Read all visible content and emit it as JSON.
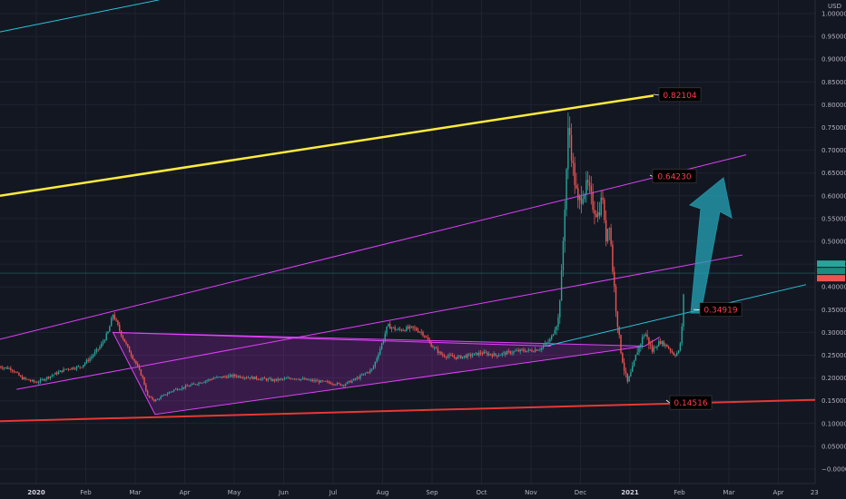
{
  "chart_data": {
    "type": "candlestick",
    "currency_label": "USD",
    "y_ticks": [
      1.0,
      0.95,
      0.9,
      0.85,
      0.8,
      0.75,
      0.7,
      0.65,
      0.6,
      0.55,
      0.5,
      0.45,
      0.4,
      0.35,
      0.3,
      0.25,
      0.2,
      0.15,
      0.1,
      0.05,
      0.0
    ],
    "y_tick_labels": [
      "1.00000",
      "0.95000",
      "0.90000",
      "0.85000",
      "0.80000",
      "0.75000",
      "0.70000",
      "0.65000",
      "0.60000",
      "0.55000",
      "0.50000",
      "0.45000",
      "0.40000",
      "0.35000",
      "0.30000",
      "0.25000",
      "0.20000",
      "0.15000",
      "0.10000",
      "0.05000",
      "−0.00000"
    ],
    "ylim": [
      -0.02,
      1.02
    ],
    "x_labels": [
      {
        "text": "2020",
        "month": 0,
        "bold": true
      },
      {
        "text": "Feb",
        "month": 1
      },
      {
        "text": "Mar",
        "month": 2
      },
      {
        "text": "Apr",
        "month": 3
      },
      {
        "text": "May",
        "month": 4
      },
      {
        "text": "Jun",
        "month": 5
      },
      {
        "text": "Jul",
        "month": 6
      },
      {
        "text": "Aug",
        "month": 7
      },
      {
        "text": "Sep",
        "month": 8
      },
      {
        "text": "Oct",
        "month": 9
      },
      {
        "text": "Nov",
        "month": 10
      },
      {
        "text": "Dec",
        "month": 11
      },
      {
        "text": "2021",
        "month": 12,
        "bold": true
      },
      {
        "text": "Feb",
        "month": 13
      },
      {
        "text": "Mar",
        "month": 14
      },
      {
        "text": "Apr",
        "month": 15
      },
      {
        "text": "23",
        "month": 15.73
      }
    ],
    "xlim_months": [
      -0.75,
      15.75
    ],
    "price_path": [
      [
        -0.75,
        0.225
      ],
      [
        -0.5,
        0.22
      ],
      [
        -0.3,
        0.2
      ],
      [
        0.0,
        0.19
      ],
      [
        0.3,
        0.205
      ],
      [
        0.6,
        0.22
      ],
      [
        0.9,
        0.225
      ],
      [
        1.1,
        0.245
      ],
      [
        1.3,
        0.27
      ],
      [
        1.45,
        0.3
      ],
      [
        1.55,
        0.34
      ],
      [
        1.7,
        0.3
      ],
      [
        1.85,
        0.265
      ],
      [
        2.0,
        0.235
      ],
      [
        2.15,
        0.2
      ],
      [
        2.25,
        0.16
      ],
      [
        2.4,
        0.15
      ],
      [
        2.55,
        0.16
      ],
      [
        2.8,
        0.175
      ],
      [
        3.0,
        0.18
      ],
      [
        3.3,
        0.19
      ],
      [
        3.6,
        0.2
      ],
      [
        4.0,
        0.205
      ],
      [
        4.4,
        0.2
      ],
      [
        4.8,
        0.195
      ],
      [
        5.2,
        0.2
      ],
      [
        5.5,
        0.195
      ],
      [
        5.9,
        0.19
      ],
      [
        6.2,
        0.185
      ],
      [
        6.5,
        0.2
      ],
      [
        6.8,
        0.22
      ],
      [
        7.0,
        0.28
      ],
      [
        7.1,
        0.315
      ],
      [
        7.3,
        0.305
      ],
      [
        7.6,
        0.31
      ],
      [
        7.8,
        0.3
      ],
      [
        8.0,
        0.27
      ],
      [
        8.2,
        0.25
      ],
      [
        8.5,
        0.245
      ],
      [
        8.8,
        0.25
      ],
      [
        9.0,
        0.255
      ],
      [
        9.3,
        0.25
      ],
      [
        9.5,
        0.255
      ],
      [
        9.8,
        0.26
      ],
      [
        10.0,
        0.26
      ],
      [
        10.2,
        0.265
      ],
      [
        10.4,
        0.285
      ],
      [
        10.55,
        0.33
      ],
      [
        10.62,
        0.43
      ],
      [
        10.7,
        0.62
      ],
      [
        10.76,
        0.76
      ],
      [
        10.85,
        0.66
      ],
      [
        10.95,
        0.58
      ],
      [
        11.05,
        0.61
      ],
      [
        11.15,
        0.62
      ],
      [
        11.25,
        0.58
      ],
      [
        11.35,
        0.56
      ],
      [
        11.45,
        0.6
      ],
      [
        11.5,
        0.5
      ],
      [
        11.58,
        0.55
      ],
      [
        11.65,
        0.44
      ],
      [
        11.72,
        0.35
      ],
      [
        11.8,
        0.27
      ],
      [
        11.88,
        0.22
      ],
      [
        11.95,
        0.19
      ],
      [
        12.05,
        0.22
      ],
      [
        12.15,
        0.26
      ],
      [
        12.3,
        0.3
      ],
      [
        12.45,
        0.26
      ],
      [
        12.6,
        0.28
      ],
      [
        12.75,
        0.27
      ],
      [
        12.9,
        0.25
      ],
      [
        13.0,
        0.26
      ],
      [
        13.05,
        0.31
      ],
      [
        13.09,
        0.4
      ],
      [
        13.1,
        0.43
      ]
    ],
    "last_price": 0.43,
    "annotations": [
      {
        "text": "0.82104",
        "value": 0.82104
      },
      {
        "text": "0.64230",
        "value": 0.6423
      },
      {
        "text": "0.34919",
        "value": 0.34919
      },
      {
        "text": "0.14516",
        "value": 0.14516
      }
    ],
    "colors": {
      "background": "#131722",
      "grid": "#1f2330",
      "candle_up": "#26a69a",
      "candle_down": "#ef5350",
      "yellow_channel": "#ffeb3b",
      "magenta_channel": "#e040fb",
      "red_support": "#e53935",
      "cyan_line": "#26c6da",
      "arrow": "#26a5b8",
      "axis_text": "#b2b5be",
      "label_bg": "#000000",
      "label_text": "#ff3d4f"
    }
  }
}
